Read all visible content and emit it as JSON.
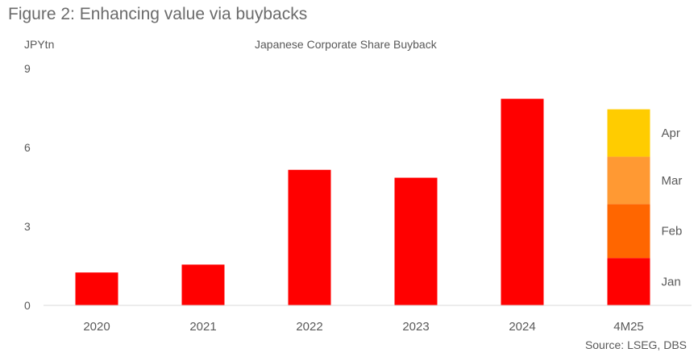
{
  "figure_title": "Figure 2: Enhancing value via buybacks",
  "source": "Source: LSEG, DBS",
  "chart_data": {
    "type": "bar",
    "title": "Japanese Corporate Share Buyback",
    "ylabel": "JPYtn",
    "xlabel": "",
    "ylim": [
      0,
      9
    ],
    "yticks": [
      0,
      3,
      6,
      9
    ],
    "categories": [
      "2020",
      "2021",
      "2022",
      "2023",
      "2024",
      "4M25"
    ],
    "values": [
      1.25,
      1.55,
      5.15,
      4.85,
      7.85,
      null
    ],
    "stacked_category": "4M25",
    "stack_segments": [
      {
        "name": "Jan",
        "value": 1.8,
        "color": "#ff0000"
      },
      {
        "name": "Feb",
        "value": 2.05,
        "color": "#ff6600"
      },
      {
        "name": "Mar",
        "value": 1.8,
        "color": "#ff9933"
      },
      {
        "name": "Apr",
        "value": 1.8,
        "color": "#ffcc00"
      }
    ],
    "bar_color": "#ff0000",
    "grid": false
  }
}
